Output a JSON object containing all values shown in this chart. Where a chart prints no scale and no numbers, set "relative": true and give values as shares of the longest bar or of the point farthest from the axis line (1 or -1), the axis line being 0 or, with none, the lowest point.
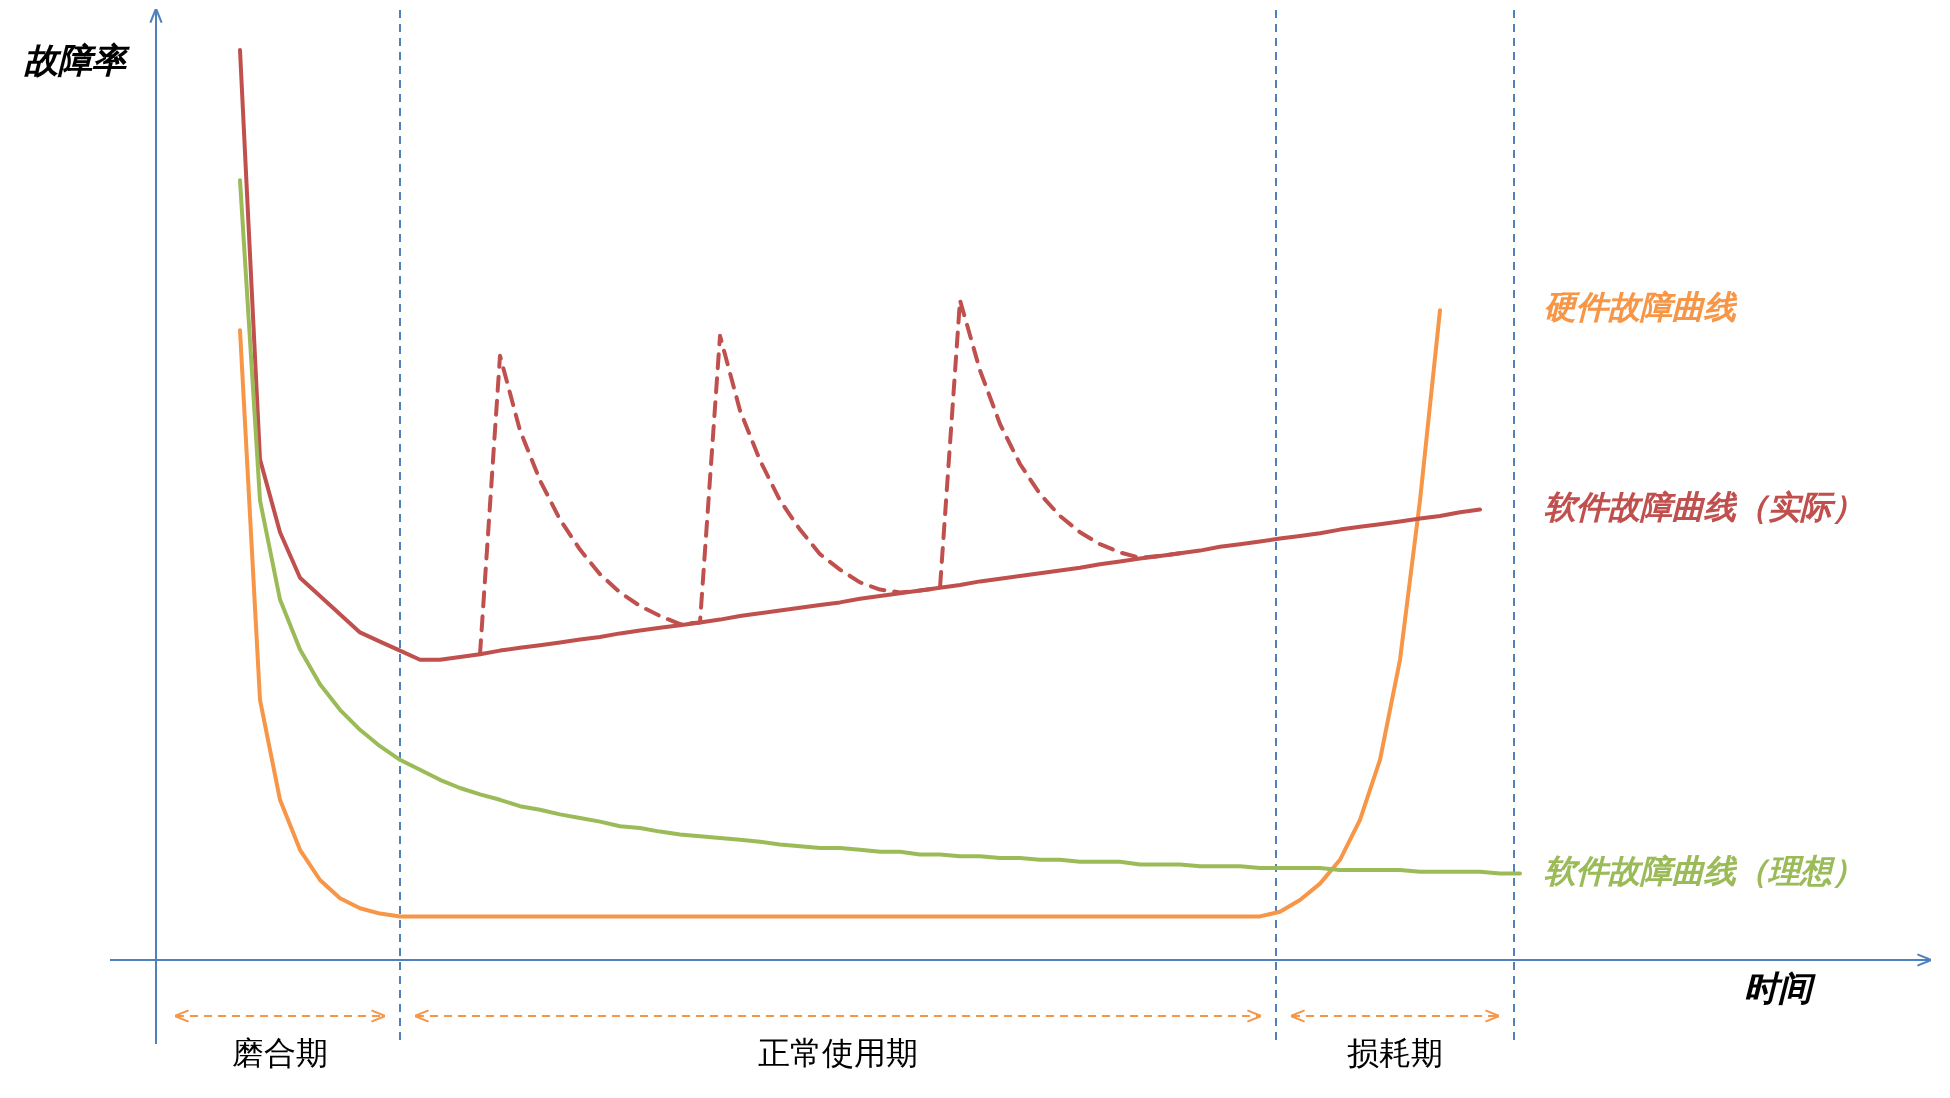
{
  "chart_data": {
    "type": "line",
    "relative": true,
    "ylabel": "故障率",
    "grid": "x",
    "annotations": [
      "磨合期",
      "正常使用期",
      "损耗期",
      "时间"
    ],
    "categories": [
      null,
      null,
      null,
      null,
      null,
      null,
      null,
      null,
      null,
      null,
      null,
      null,
      null,
      null,
      null,
      null,
      null,
      null,
      null,
      null,
      null,
      null,
      null,
      null,
      null,
      null,
      null,
      null,
      null,
      null,
      null,
      null,
      null,
      null,
      null,
      null,
      null,
      null,
      null,
      null,
      null,
      null,
      null,
      null,
      null,
      null,
      null,
      null,
      null,
      null,
      null,
      null,
      null,
      null,
      null,
      null,
      null,
      null,
      null,
      null,
      null,
      null,
      null,
      null,
      null,
      null,
      null,
      null,
      null
    ],
    "series": [
      {
        "name": "硬件故障曲线",
        "color": "#f79646",
        "values": [
          null,
          null,
          null,
          null,
          0.692,
          0.286,
          0.176,
          0.121,
          0.088,
          0.068,
          0.057,
          0.051,
          0.048,
          0.048,
          0.048,
          0.048,
          0.048,
          0.048,
          0.048,
          0.048,
          0.048,
          0.048,
          0.048,
          0.048,
          0.048,
          0.048,
          0.048,
          0.048,
          0.048,
          0.048,
          0.048,
          0.048,
          0.048,
          0.048,
          0.048,
          0.048,
          0.048,
          0.048,
          0.048,
          0.048,
          0.048,
          0.048,
          0.048,
          0.048,
          0.048,
          0.048,
          0.048,
          0.048,
          0.048,
          0.048,
          0.048,
          0.048,
          0.048,
          0.048,
          0.048,
          0.048,
          0.053,
          0.066,
          0.084,
          0.11,
          0.154,
          0.22,
          0.33,
          0.505,
          0.714,
          null,
          null,
          null,
          null
        ]
      },
      {
        "name": "软件故障曲线（实际）",
        "color": "#c0504d",
        "values": [
          null,
          null,
          null,
          null,
          1.0,
          0.55,
          0.47,
          0.42,
          0.4,
          0.38,
          0.36,
          0.35,
          0.34,
          0.33,
          0.33,
          0.333,
          0.336,
          0.34,
          0.343,
          0.346,
          0.349,
          0.352,
          0.355,
          0.359,
          0.362,
          0.365,
          0.368,
          0.371,
          0.374,
          0.378,
          0.381,
          0.384,
          0.387,
          0.39,
          0.393,
          0.397,
          0.4,
          0.403,
          0.406,
          0.409,
          0.412,
          0.416,
          0.419,
          0.422,
          0.425,
          0.428,
          0.431,
          0.435,
          0.438,
          0.441,
          0.444,
          0.447,
          0.45,
          0.454,
          0.457,
          0.46,
          0.463,
          0.466,
          0.469,
          0.473,
          0.476,
          0.479,
          0.482,
          0.485,
          0.488,
          0.492,
          0.495,
          null,
          null
        ]
      },
      {
        "color": "#c0504d",
        "line_style": "dashed",
        "values": [
          null,
          null,
          null,
          null,
          null,
          null,
          null,
          null,
          null,
          null,
          null,
          null,
          null,
          null,
          null,
          null,
          0.336,
          0.664,
          0.582,
          0.527,
          0.484,
          0.451,
          0.424,
          0.404,
          0.389,
          0.378,
          0.369,
          0.371,
          0.686,
          0.604,
          0.549,
          0.505,
          0.473,
          0.446,
          0.429,
          0.415,
          0.407,
          0.404,
          0.406,
          0.409,
          0.725,
          0.648,
          0.589,
          0.545,
          0.512,
          0.488,
          0.47,
          0.457,
          0.448,
          0.442,
          0.444,
          0.447,
          null,
          null,
          null,
          null,
          null,
          null,
          null,
          null,
          null,
          null,
          null,
          null,
          null,
          null,
          null,
          null,
          null
        ]
      },
      {
        "name": "软件故障曲线（理想）",
        "color": "#9bbb59",
        "values": [
          null,
          null,
          null,
          null,
          0.857,
          0.505,
          0.396,
          0.341,
          0.303,
          0.275,
          0.253,
          0.235,
          0.22,
          0.209,
          0.198,
          0.189,
          0.182,
          0.176,
          0.169,
          0.165,
          0.16,
          0.156,
          0.152,
          0.147,
          0.145,
          0.141,
          0.138,
          0.136,
          0.134,
          0.132,
          0.13,
          0.127,
          0.125,
          0.123,
          0.123,
          0.121,
          0.119,
          0.119,
          0.116,
          0.116,
          0.114,
          0.114,
          0.112,
          0.112,
          0.11,
          0.11,
          0.108,
          0.108,
          0.108,
          0.105,
          0.105,
          0.105,
          0.103,
          0.103,
          0.103,
          0.101,
          0.101,
          0.101,
          0.101,
          0.099,
          0.099,
          0.099,
          0.099,
          0.097,
          0.097,
          0.097,
          0.097,
          0.095,
          0.095
        ]
      }
    ]
  }
}
